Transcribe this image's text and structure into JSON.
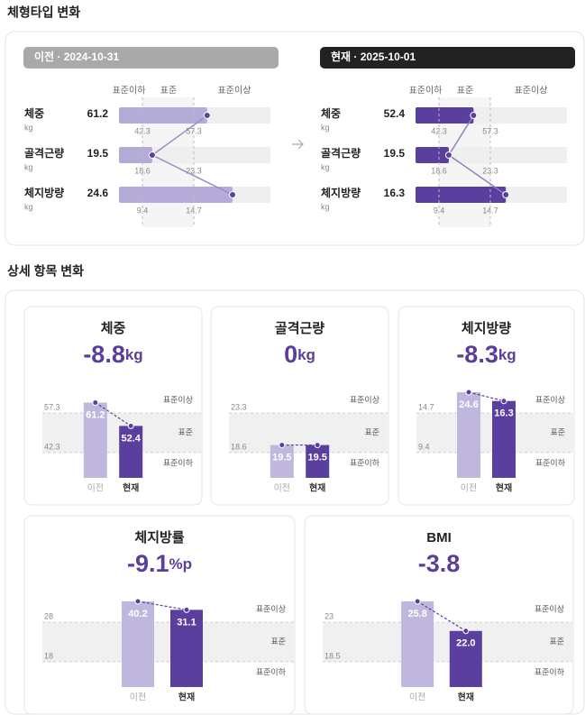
{
  "section_title": "체형타입 변화",
  "comparison": [
    {
      "header": "이전 · 2024-10-31",
      "scale_labels": [
        "표준이하",
        "표준",
        "표준이상"
      ],
      "rows": [
        {
          "label": "체중",
          "unit": "kg",
          "value": 61.2,
          "low": 42.3,
          "high": 57.3
        },
        {
          "label": "골격근량",
          "unit": "kg",
          "value": 19.5,
          "low": 18.6,
          "high": 23.3
        },
        {
          "label": "체지방량",
          "unit": "kg",
          "value": 24.6,
          "low": 9.4,
          "high": 14.7
        }
      ]
    },
    {
      "header": "현재 · 2025-10-01",
      "scale_labels": [
        "표준이하",
        "표준",
        "표준이상"
      ],
      "rows": [
        {
          "label": "체중",
          "unit": "kg",
          "value": 52.4,
          "low": 42.3,
          "high": 57.3
        },
        {
          "label": "골격근량",
          "unit": "kg",
          "value": 19.5,
          "low": 18.6,
          "high": 23.3
        },
        {
          "label": "체지방량",
          "unit": "kg",
          "value": 16.3,
          "low": 9.4,
          "high": 14.7
        }
      ]
    }
  ],
  "detail_title": "상세 항목 변화",
  "cards": [
    {
      "title": "체중",
      "change": "-8.8",
      "unit": "kg",
      "categories": [
        "이전",
        "현재"
      ],
      "values": [
        61.2,
        52.4
      ],
      "low": 42.3,
      "high": 57.3,
      "zone_labels": [
        "표준이상",
        "표준",
        "표준이하"
      ]
    },
    {
      "title": "골격근량",
      "change": "0",
      "unit": "kg",
      "categories": [
        "이전",
        "현재"
      ],
      "values": [
        19.5,
        19.5
      ],
      "low": 18.6,
      "high": 23.3,
      "zone_labels": [
        "표준이상",
        "표준",
        "표준이하"
      ]
    },
    {
      "title": "체지방량",
      "change": "-8.3",
      "unit": "kg",
      "categories": [
        "이전",
        "현재"
      ],
      "values": [
        24.6,
        16.3
      ],
      "low": 9.4,
      "high": 14.7,
      "zone_labels": [
        "표준이상",
        "표준",
        "표준이하"
      ]
    },
    {
      "title": "체지방률",
      "change": "-9.1",
      "unit": "%p",
      "categories": [
        "이전",
        "현재"
      ],
      "values": [
        40.2,
        31.1
      ],
      "low": 18,
      "high": 28,
      "zone_labels": [
        "표준이상",
        "표준",
        "표준이하"
      ]
    },
    {
      "title": "BMI",
      "change": "-3.8",
      "categories": [
        "이전",
        "현재"
      ],
      "values": [
        25.8,
        22
      ],
      "value_labels": [
        "25.8",
        "22.0"
      ],
      "low": 18.5,
      "high": 23,
      "zone_labels": [
        "표준이상",
        "표준",
        "표준이하"
      ]
    }
  ]
}
